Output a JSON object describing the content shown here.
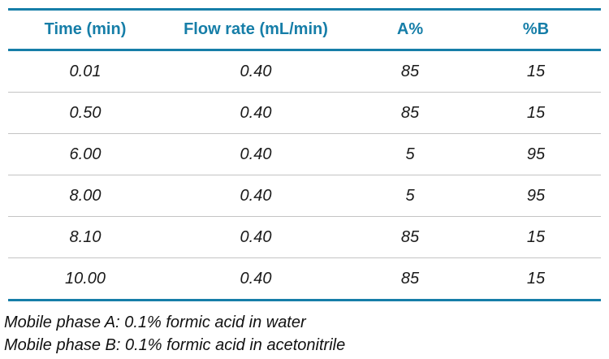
{
  "colors": {
    "accent_teal": "#167EA8",
    "row_separator": "#c4c4c4",
    "text": "#1a1a1a"
  },
  "table": {
    "columns": [
      "Time (min)",
      "Flow rate (mL/min)",
      "A%",
      "%B"
    ],
    "rows": [
      [
        "0.01",
        "0.40",
        "85",
        "15"
      ],
      [
        "0.50",
        "0.40",
        "85",
        "15"
      ],
      [
        "6.00",
        "0.40",
        "5",
        "95"
      ],
      [
        "8.00",
        "0.40",
        "5",
        "95"
      ],
      [
        "8.10",
        "0.40",
        "85",
        "15"
      ],
      [
        "10.00",
        "0.40",
        "85",
        "15"
      ]
    ]
  },
  "footnotes": [
    "Mobile phase A: 0.1% formic acid in water",
    "Mobile phase B: 0.1% formic acid in acetonitrile"
  ]
}
